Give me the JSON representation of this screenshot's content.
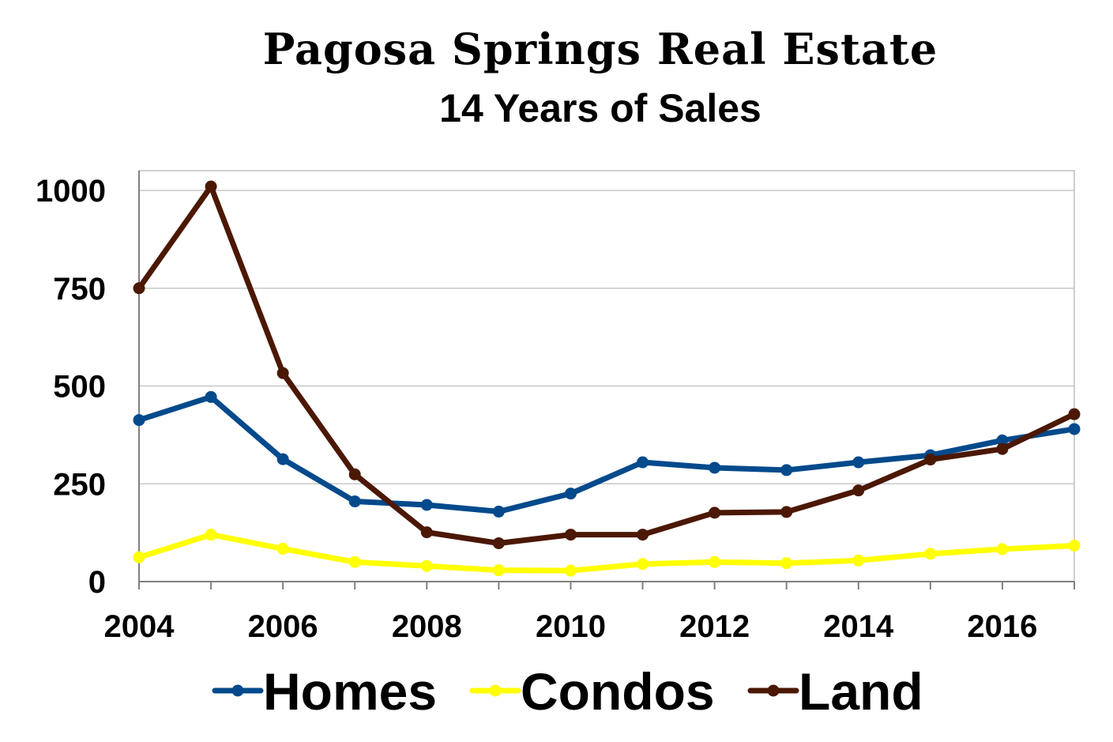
{
  "chart_data": {
    "type": "line",
    "title": "Pagosa Springs Real Estate",
    "subtitle": "14 Years of Sales",
    "x": [
      2004,
      2005,
      2006,
      2007,
      2008,
      2009,
      2010,
      2011,
      2012,
      2013,
      2014,
      2015,
      2016,
      2017
    ],
    "x_tick_labels": [
      "2004",
      "2006",
      "2008",
      "2010",
      "2012",
      "2014",
      "2016"
    ],
    "y_tick_labels": [
      "0",
      "250",
      "500",
      "750",
      "1000"
    ],
    "ylim": [
      0,
      1000
    ],
    "grid": true,
    "legend_position": "bottom",
    "series": [
      {
        "name": "Homes",
        "color": "#034a8c",
        "values": [
          413,
          472,
          313,
          205,
          196,
          179,
          225,
          305,
          291,
          285,
          305,
          323,
          361,
          390
        ]
      },
      {
        "name": "Condos",
        "color": "#ffff00",
        "values": [
          62,
          120,
          84,
          50,
          40,
          29,
          28,
          45,
          50,
          47,
          54,
          71,
          83,
          92
        ]
      },
      {
        "name": "Land",
        "color": "#4b1804",
        "values": [
          750,
          1010,
          533,
          274,
          126,
          98,
          120,
          120,
          176,
          178,
          233,
          312,
          339,
          428
        ]
      }
    ]
  }
}
